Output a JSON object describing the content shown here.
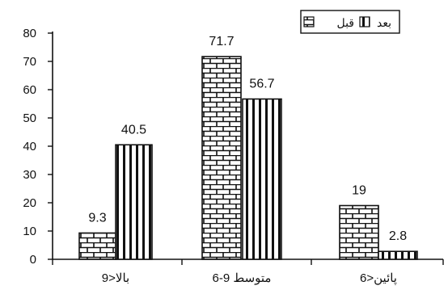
{
  "chart_data": {
    "type": "bar",
    "categories": [
      "بالا<9",
      "متوسط 9-6",
      "پائين<6"
    ],
    "series": [
      {
        "name": "قبل",
        "values": [
          9.3,
          71.7,
          19
        ],
        "pattern": "brick"
      },
      {
        "name": "بعد",
        "values": [
          40.5,
          56.7,
          2.8
        ],
        "pattern": "vertical-stripes"
      }
    ],
    "data_labels": [
      [
        "9.3",
        "71.7",
        "19"
      ],
      [
        "40.5",
        "56.7",
        "2.8"
      ]
    ],
    "ylim": [
      0,
      80
    ],
    "yticks": [
      0,
      10,
      20,
      30,
      40,
      50,
      60,
      70,
      80
    ],
    "grid": false,
    "legend_position": "top-right",
    "colors": {
      "ink": "#111111",
      "background": "#ffffff"
    }
  }
}
